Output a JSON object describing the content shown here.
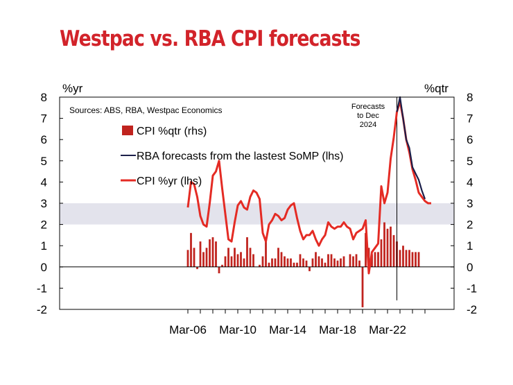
{
  "chart_data": {
    "type": "bar+line",
    "title": "Westpac vs. RBA CPI forecasts",
    "left_unit": "%yr",
    "right_unit": "%qtr",
    "source": "Sources: ABS, RBA, Westpac Economics",
    "annotation": [
      "Forecasts",
      "to Dec",
      "2024"
    ],
    "ylim": [
      -2,
      8
    ],
    "yticks_left": [
      "8",
      "7",
      "6",
      "5",
      "4",
      "3",
      "2",
      "1",
      "0",
      "-1",
      "-2"
    ],
    "yticks_right": [
      "8",
      "7",
      "6",
      "5",
      "4",
      "3",
      "2",
      "1",
      "0",
      "-1",
      "-2"
    ],
    "xticks": [
      "Mar-06",
      "Mar-10",
      "Mar-14",
      "Mar-18",
      "Mar-22"
    ],
    "target_band": [
      2,
      3
    ],
    "start_quarter": "Mar-06",
    "forecast_start_quarter": "Dec-22",
    "colors": {
      "bars": "#c0231e",
      "cpi_line": "#e42b24",
      "rba_line": "#1b1f4a",
      "band": "#e3e3ec",
      "title": "#d2232a"
    },
    "legend": [
      {
        "label": "CPI %qtr (rhs)",
        "type": "bar"
      },
      {
        "label": "RBA forecasts from the lastest SoMP (lhs)",
        "type": "line"
      },
      {
        "label": "CPI %yr (lhs)",
        "type": "line"
      }
    ],
    "series": [
      {
        "name": "CPI %qtr (rhs)",
        "values": [
          0.8,
          1.6,
          0.9,
          -0.1,
          1.2,
          0.7,
          0.9,
          1.3,
          1.4,
          1.2,
          -0.3,
          0.1,
          0.5,
          0.9,
          0.5,
          0.9,
          0.6,
          0.7,
          0.4,
          1.4,
          0.9,
          0.6,
          0.0,
          0.1,
          0.5,
          1.4,
          0.2,
          0.4,
          0.4,
          0.9,
          0.7,
          0.5,
          0.4,
          0.4,
          0.2,
          0.2,
          0.6,
          0.4,
          0.3,
          -0.2,
          0.4,
          0.7,
          0.5,
          0.4,
          0.2,
          0.6,
          0.6,
          0.4,
          0.3,
          0.4,
          0.5,
          0.0,
          0.6,
          0.5,
          0.6,
          0.3,
          -1.9,
          1.6,
          0.9,
          0.6,
          0.7,
          0.7,
          1.3,
          2.1,
          1.8,
          1.9,
          1.5,
          1.2,
          0.8,
          1.0,
          0.8,
          0.8,
          0.7,
          0.7,
          0.7
        ]
      },
      {
        "name": "CPI %yr (lhs)",
        "values": [
          2.8,
          4.0,
          3.9,
          3.3,
          2.4,
          2.0,
          1.9,
          3.0,
          4.3,
          4.5,
          5.0,
          3.7,
          2.5,
          1.3,
          1.2,
          2.1,
          2.9,
          3.1,
          2.8,
          2.7,
          3.3,
          3.6,
          3.5,
          3.2,
          1.6,
          1.2,
          2.0,
          2.2,
          2.5,
          2.4,
          2.2,
          2.3,
          2.7,
          2.9,
          3.0,
          2.3,
          1.7,
          1.3,
          1.5,
          1.5,
          1.7,
          1.3,
          1.0,
          1.3,
          1.5,
          2.1,
          1.9,
          1.8,
          1.9,
          1.9,
          2.1,
          1.9,
          1.8,
          1.3,
          1.6,
          1.7,
          1.8,
          2.2,
          -0.3,
          0.7,
          0.9,
          1.1,
          3.8,
          3.0,
          3.5,
          5.1,
          6.1,
          7.3,
          7.8,
          7.0,
          6.0,
          5.4,
          4.6,
          4.1,
          3.5,
          3.3,
          3.1,
          3.0,
          3.0
        ]
      },
      {
        "name": "RBA forecasts from the lastest SoMP (lhs)",
        "values": [
          7.3,
          8.0,
          7.0,
          6.0,
          5.6,
          4.7,
          4.4,
          4.1,
          3.6,
          3.2
        ]
      }
    ]
  }
}
